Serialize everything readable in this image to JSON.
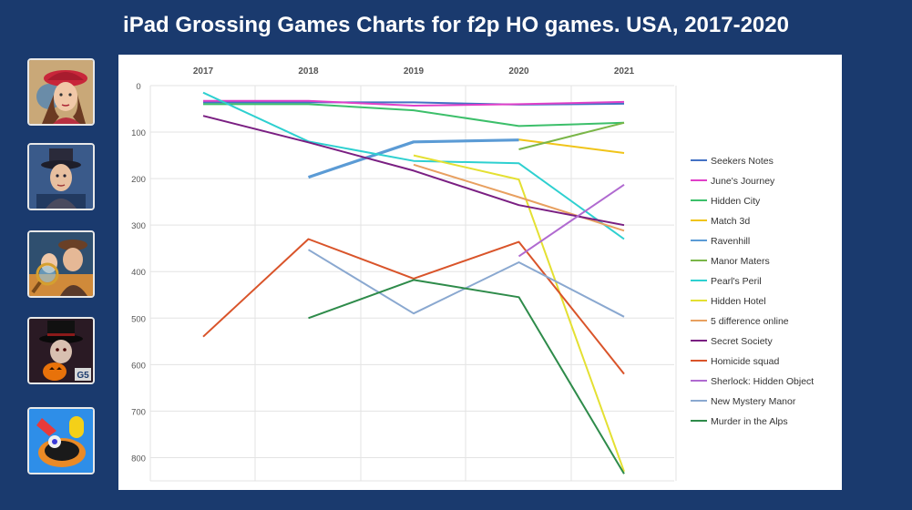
{
  "slide": {
    "title": "iPad Grossing Games Charts for f2p HO games. USA, 2017-2020"
  },
  "icons": [
    {
      "name": "seekers-notes-icon"
    },
    {
      "name": "detective-icon"
    },
    {
      "name": "investigators-icon"
    },
    {
      "name": "horror-g5-icon"
    },
    {
      "name": "match3d-icon"
    }
  ],
  "chart_data": {
    "type": "line",
    "title": "",
    "xlabel": "",
    "ylabel": "",
    "x": [
      "2017",
      "2018",
      "2019",
      "2020",
      "2021"
    ],
    "ylim": [
      0,
      850
    ],
    "yticks": [
      0,
      100,
      200,
      300,
      400,
      500,
      600,
      700,
      800
    ],
    "y_inverted": true,
    "legend_position": "right",
    "series": [
      {
        "name": "Seekers Notes",
        "color": "#4472c4",
        "values": [
          36,
          36,
          36,
          41,
          39
        ]
      },
      {
        "name": "June's Journey",
        "color": "#e040c8",
        "values": [
          33,
          33,
          43,
          40,
          35
        ]
      },
      {
        "name": "Hidden City",
        "color": "#3cbf6a",
        "values": [
          40,
          40,
          53,
          87,
          80
        ]
      },
      {
        "name": "Match 3d",
        "color": "#f0c419",
        "values": [
          null,
          null,
          null,
          116,
          145
        ]
      },
      {
        "name": "Ravenhill",
        "color": "#5b9bd5",
        "values": [
          null,
          197,
          121,
          117,
          null
        ]
      },
      {
        "name": "Manor Maters",
        "color": "#7ab648",
        "values": [
          null,
          null,
          null,
          137,
          80
        ]
      },
      {
        "name": "Pearl's Peril",
        "color": "#2ed0d0",
        "values": [
          15,
          120,
          162,
          167,
          330
        ]
      },
      {
        "name": "Hidden Hotel",
        "color": "#e4e032",
        "values": [
          null,
          null,
          150,
          202,
          830
        ]
      },
      {
        "name": "5 difference online",
        "color": "#e8a060",
        "values": [
          null,
          null,
          170,
          240,
          312
        ]
      },
      {
        "name": "Secret Society",
        "color": "#7a1f82",
        "values": [
          65,
          122,
          183,
          257,
          300
        ]
      },
      {
        "name": "Homicide squad",
        "color": "#d9542a",
        "values": [
          540,
          330,
          415,
          336,
          620
        ]
      },
      {
        "name": "Sherlock: Hidden Object",
        "color": "#b06ad0",
        "values": [
          null,
          null,
          null,
          367,
          213
        ]
      },
      {
        "name": "New Mystery Manor",
        "color": "#8aa8d0",
        "values": [
          null,
          353,
          490,
          380,
          497
        ]
      },
      {
        "name": "Murder in the Alps",
        "color": "#2e8b4a",
        "values": [
          null,
          500,
          418,
          455,
          835
        ]
      }
    ]
  }
}
